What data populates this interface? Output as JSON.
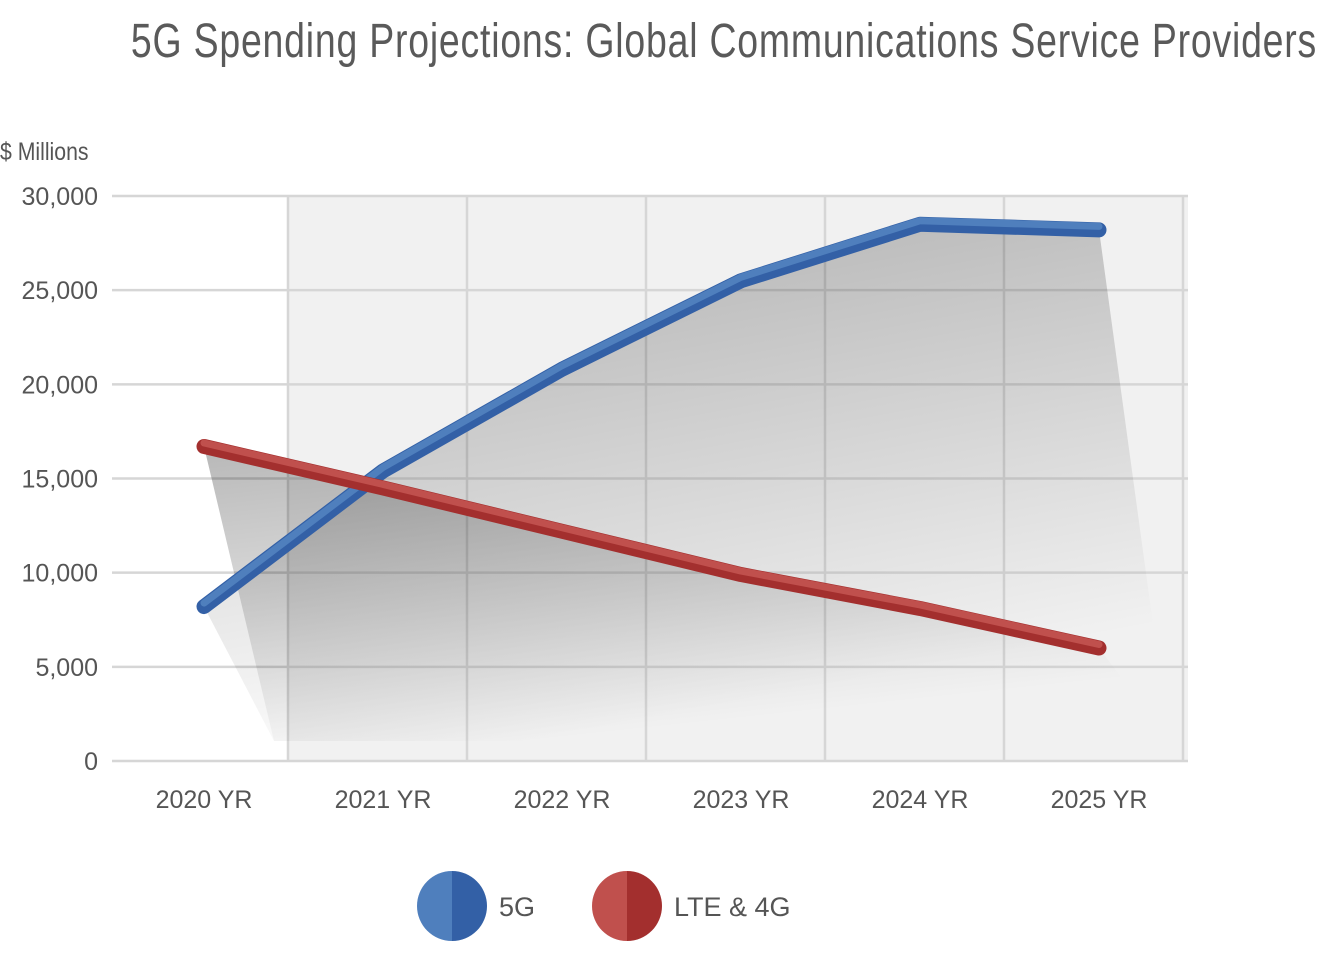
{
  "chart_data": {
    "type": "line",
    "title": "5G Spending Projections: Global Communications Service Providers",
    "ylabel": "$ Millions",
    "xlabel": "",
    "categories": [
      "2020 YR",
      "2021 YR",
      "2022 YR",
      "2023 YR",
      "2024 YR",
      "2025 YR"
    ],
    "ylim": [
      0,
      30000
    ],
    "yticks": [
      0,
      5000,
      10000,
      15000,
      20000,
      25000,
      30000
    ],
    "ytick_labels": [
      "0",
      "5,000",
      "10,000",
      "15,000",
      "20,000",
      "25,000",
      "30,000"
    ],
    "grid": true,
    "legend_position": "bottom-center",
    "series": [
      {
        "name": "5G",
        "values": [
          8200,
          15400,
          20800,
          25500,
          28500,
          28200
        ],
        "color_light": "#4f7fbd",
        "color_dark": "#3360a6"
      },
      {
        "name": "LTE & 4G",
        "values": [
          16700,
          14500,
          12200,
          9900,
          8100,
          6000
        ],
        "color_light": "#c0504d",
        "color_dark": "#a32f2e"
      }
    ]
  }
}
